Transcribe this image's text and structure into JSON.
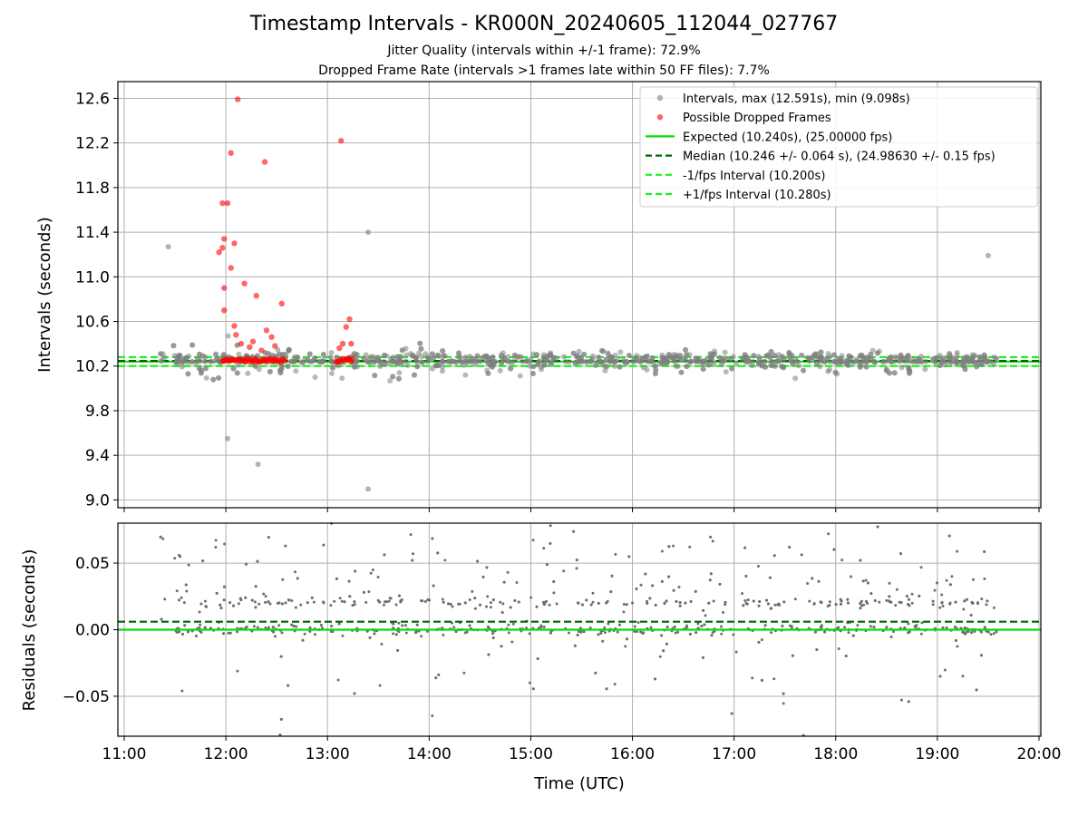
{
  "title": "Timestamp Intervals - KR000N_20240605_112044_027767",
  "subtitle_1": "Jitter Quality (intervals within +/-1 frame): 72.9%",
  "subtitle_2": "Dropped Frame Rate (intervals >1 frames late within 50 FF files): 7.7%",
  "colors": {
    "intervals": "#808080",
    "dropped": "#ff0000",
    "expected": "#00e000",
    "median": "#006400",
    "fps_interval": "#22ee22",
    "grid": "#b0b0b0"
  },
  "chart_data": [
    {
      "type": "scatter",
      "panel": "top",
      "xlabel": "",
      "ylabel": "Intervals (seconds)",
      "xlim": [
        "11:00",
        "20:00"
      ],
      "ylim": [
        8.93,
        12.75
      ],
      "y_ticks": [
        "9.0",
        "9.4",
        "9.8",
        "10.2",
        "10.6",
        "11.0",
        "11.4",
        "11.8",
        "12.2",
        "12.6"
      ],
      "grid": true,
      "legend_position": "top-right",
      "legend": [
        "Intervals, max (12.591s), min (9.098s)",
        "Possible Dropped Frames",
        "Expected (10.240s), (25.00000 fps)",
        "Median (10.246 +/- 0.064 s), (24.98630 +/- 0.15 fps)",
        "-1/fps Interval (10.200s)",
        "+1/fps Interval (10.280s)"
      ],
      "x_range_observed": [
        "11:21",
        "19:36"
      ],
      "lines": {
        "expected": 10.24,
        "median": 10.246,
        "minus_1fps": 10.2,
        "plus_1fps": 10.28
      },
      "series": [
        {
          "name": "Intervals, max (12.591s), min (9.098s)",
          "max": 12.591,
          "min": 9.098,
          "typical_spread": [
            9.9,
            10.55
          ]
        },
        {
          "name": "Possible Dropped Frames",
          "points": [
            [
              "12:07",
              12.591
            ],
            [
              "12:03",
              12.11
            ],
            [
              "12:23",
              12.03
            ],
            [
              "13:08",
              12.22
            ],
            [
              "11:58",
              11.66
            ],
            [
              "12:01",
              11.66
            ],
            [
              "11:59",
              11.34
            ],
            [
              "11:58",
              11.26
            ],
            [
              "11:56",
              11.22
            ],
            [
              "12:03",
              11.08
            ],
            [
              "12:05",
              11.3
            ],
            [
              "12:11",
              10.94
            ],
            [
              "11:59",
              10.9
            ],
            [
              "12:18",
              10.83
            ],
            [
              "12:33",
              10.76
            ],
            [
              "11:59",
              10.7
            ],
            [
              "12:05",
              10.56
            ],
            [
              "13:11",
              10.55
            ],
            [
              "13:13",
              10.62
            ],
            [
              "12:06",
              10.48
            ],
            [
              "12:24",
              10.52
            ],
            [
              "12:27",
              10.46
            ],
            [
              "12:16",
              10.42
            ],
            [
              "13:14",
              10.4
            ],
            [
              "12:09",
              10.4
            ],
            [
              "12:14",
              10.37
            ],
            [
              "13:09",
              10.4
            ],
            [
              "12:21",
              10.34
            ],
            [
              "12:29",
              10.38
            ],
            [
              "13:07",
              10.36
            ]
          ],
          "cluster_near_baseline": [
            [
              "11:58",
              "12:35",
              10.252
            ],
            [
              "13:05",
              "13:15",
              10.252
            ]
          ]
        }
      ]
    },
    {
      "type": "scatter",
      "panel": "bottom",
      "xlabel": "Time (UTC)",
      "ylabel": "Residuals (seconds)",
      "xlim": [
        "11:00",
        "20:00"
      ],
      "x_ticks": [
        "11:00",
        "12:00",
        "13:00",
        "14:00",
        "15:00",
        "16:00",
        "17:00",
        "18:00",
        "19:00",
        "20:00"
      ],
      "ylim": [
        -0.08,
        0.08
      ],
      "y_ticks": [
        "−0.05",
        "0.00",
        "0.05"
      ],
      "grid": true,
      "lines": {
        "zero": 0.0,
        "median_offset": 0.006
      },
      "series": [
        {
          "typical_bands": [
            0.0,
            0.02
          ],
          "spread": [
            -0.08,
            0.08
          ]
        }
      ]
    }
  ]
}
